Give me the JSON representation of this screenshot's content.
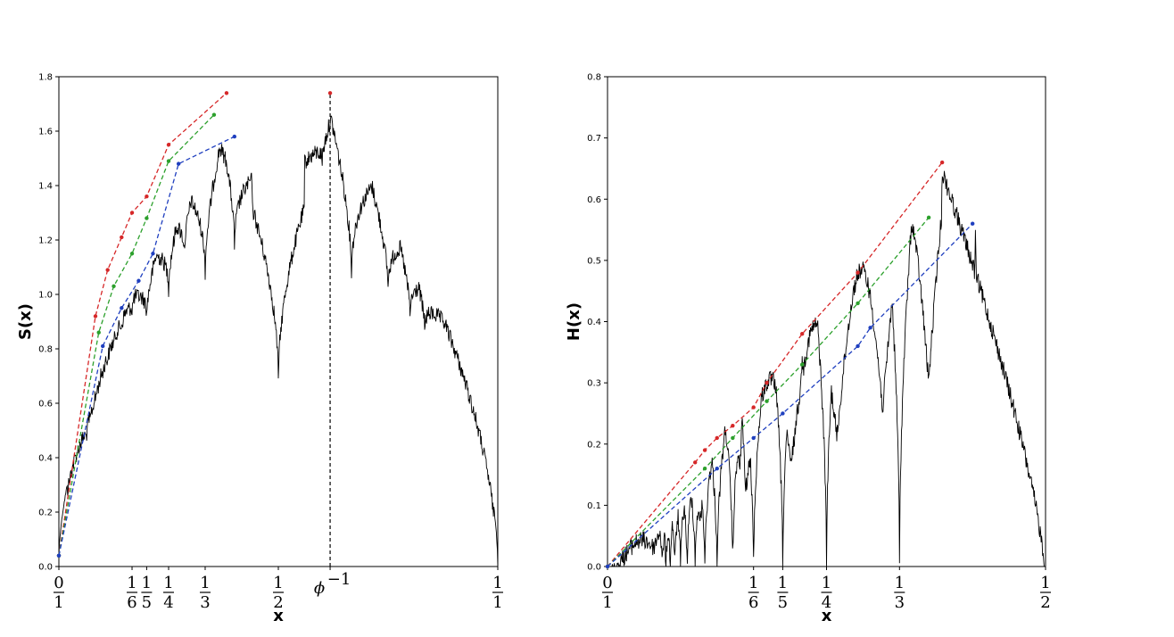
{
  "chart_data": [
    {
      "type": "line",
      "xlabel": "x",
      "ylabel": "S(x)",
      "xlim": [
        0,
        1
      ],
      "ylim": [
        0,
        1.8
      ],
      "yticks": [
        0.0,
        0.2,
        0.4,
        0.6,
        0.8,
        1.0,
        1.2,
        1.4,
        1.6,
        1.8
      ],
      "ytick_labels": [
        "0.0",
        "0.2",
        "0.4",
        "0.6",
        "0.8",
        "1.0",
        "1.2",
        "1.4",
        "1.6",
        "1.8"
      ],
      "xticks": [
        {
          "x": 0,
          "num": "0",
          "den": "1"
        },
        {
          "x": 0.1667,
          "num": "1",
          "den": "6"
        },
        {
          "x": 0.2,
          "num": "1",
          "den": "5"
        },
        {
          "x": 0.25,
          "num": "1",
          "den": "4"
        },
        {
          "x": 0.3333,
          "num": "1",
          "den": "3"
        },
        {
          "x": 0.5,
          "num": "1",
          "den": "2"
        },
        {
          "x": 0.618,
          "label": "ϕ",
          "sup": "−1"
        },
        {
          "x": 1,
          "num": "1",
          "den": "1"
        }
      ],
      "vline": {
        "x": 0.618,
        "color": "#000000",
        "style": "dashed"
      },
      "curve": {
        "name": "",
        "color": "#000000",
        "anchors": [
          {
            "x": 0.0,
            "y": 0.04
          },
          {
            "x": 0.1667,
            "y": 1.18
          },
          {
            "x": 0.2,
            "y": 1.3
          },
          {
            "x": 0.25,
            "y": 1.53
          },
          {
            "x": 0.3333,
            "y": 1.66
          },
          {
            "x": 0.382,
            "y": 1.74
          },
          {
            "x": 0.5,
            "y": 0.7
          },
          {
            "x": 0.618,
            "y": 1.74
          },
          {
            "x": 1.0,
            "y": 0.0
          }
        ],
        "dips": [
          {
            "x": 0.0625,
            "y": 0.5
          },
          {
            "x": 0.0714,
            "y": 0.56
          },
          {
            "x": 0.0769,
            "y": 0.6
          },
          {
            "x": 0.0833,
            "y": 0.64
          },
          {
            "x": 0.0909,
            "y": 0.69
          },
          {
            "x": 0.1,
            "y": 0.74
          },
          {
            "x": 0.1111,
            "y": 0.79
          },
          {
            "x": 0.125,
            "y": 0.85
          },
          {
            "x": 0.1429,
            "y": 0.91
          },
          {
            "x": 0.1667,
            "y": 0.97
          },
          {
            "x": 0.2,
            "y": 0.95
          },
          {
            "x": 0.25,
            "y": 1.05
          },
          {
            "x": 0.2857,
            "y": 1.18
          },
          {
            "x": 0.3333,
            "y": 1.1
          },
          {
            "x": 0.4,
            "y": 1.2
          },
          {
            "x": 0.5,
            "y": 0.7
          },
          {
            "x": 0.6,
            "y": 1.52
          },
          {
            "x": 0.6667,
            "y": 1.1
          },
          {
            "x": 0.75,
            "y": 1.05
          },
          {
            "x": 0.8,
            "y": 0.95
          },
          {
            "x": 0.8333,
            "y": 0.9
          }
        ]
      },
      "series": [
        {
          "color": "#d62728",
          "x": [
            0.0,
            0.0833,
            0.1111,
            0.1429,
            0.1667,
            0.2,
            0.25,
            0.382
          ],
          "y": [
            0.04,
            0.92,
            1.09,
            1.21,
            1.3,
            1.36,
            1.55,
            1.74
          ]
        },
        {
          "color": "#2ca02c",
          "x": [
            0.0,
            0.0909,
            0.125,
            0.1667,
            0.2,
            0.25,
            0.3535
          ],
          "y": [
            0.04,
            0.86,
            1.03,
            1.15,
            1.28,
            1.49,
            1.66
          ]
        },
        {
          "color": "#1f3fbf",
          "x": [
            0.0,
            0.1,
            0.1429,
            0.1818,
            0.2143,
            0.2727,
            0.4
          ],
          "y": [
            0.04,
            0.81,
            0.95,
            1.05,
            1.15,
            1.48,
            1.58
          ]
        }
      ],
      "peak_markers": [
        {
          "x": 0.618,
          "y": 1.74,
          "color": "#d62728"
        }
      ]
    },
    {
      "type": "line",
      "xlabel": "x",
      "ylabel": "H(x)",
      "xlim": [
        0,
        0.5
      ],
      "ylim": [
        0,
        0.8
      ],
      "yticks": [
        0.0,
        0.1,
        0.2,
        0.3,
        0.4,
        0.5,
        0.6,
        0.7,
        0.8
      ],
      "ytick_labels": [
        "0.0",
        "0.1",
        "0.2",
        "0.3",
        "0.4",
        "0.5",
        "0.6",
        "0.7",
        "0.8"
      ],
      "xticks": [
        {
          "x": 0,
          "num": "0",
          "den": "1"
        },
        {
          "x": 0.1667,
          "num": "1",
          "den": "6"
        },
        {
          "x": 0.2,
          "num": "1",
          "den": "5"
        },
        {
          "x": 0.25,
          "num": "1",
          "den": "4"
        },
        {
          "x": 0.3333,
          "num": "1",
          "den": "3"
        },
        {
          "x": 0.5,
          "num": "1",
          "den": "2"
        }
      ],
      "curve": {
        "name": "",
        "color": "#000000",
        "anchors": [
          {
            "x": 0.0,
            "y": 0.0
          },
          {
            "x": 0.5,
            "y": 0.0
          }
        ],
        "zeros": [
          0.0,
          0.0625,
          0.0667,
          0.0714,
          0.0769,
          0.0833,
          0.0909,
          0.1,
          0.1111,
          0.125,
          0.1429,
          0.1667,
          0.2,
          0.25,
          0.3333,
          0.5
        ],
        "peaks": [
          {
            "x": 0.1333,
            "y": 0.23
          },
          {
            "x": 0.1538,
            "y": 0.26
          },
          {
            "x": 0.1818,
            "y": 0.3
          },
          {
            "x": 0.2222,
            "y": 0.37
          },
          {
            "x": 0.2857,
            "y": 0.47
          },
          {
            "x": 0.3043,
            "y": 0.4
          },
          {
            "x": 0.382,
            "y": 0.66
          },
          {
            "x": 0.42,
            "y": 0.55
          }
        ]
      },
      "series": [
        {
          "color": "#d62728",
          "x": [
            0.0,
            0.1,
            0.1111,
            0.125,
            0.1429,
            0.1667,
            0.1818,
            0.2222,
            0.2857,
            0.382
          ],
          "y": [
            0.0,
            0.17,
            0.19,
            0.21,
            0.23,
            0.26,
            0.3,
            0.38,
            0.48,
            0.66
          ]
        },
        {
          "color": "#2ca02c",
          "x": [
            0.0,
            0.1111,
            0.1429,
            0.1818,
            0.2222,
            0.2857,
            0.3667
          ],
          "y": [
            0.0,
            0.16,
            0.21,
            0.27,
            0.33,
            0.43,
            0.57
          ]
        },
        {
          "color": "#1f3fbf",
          "x": [
            0.0,
            0.125,
            0.1667,
            0.2,
            0.2857,
            0.3,
            0.4167
          ],
          "y": [
            0.0,
            0.16,
            0.21,
            0.25,
            0.36,
            0.39,
            0.56
          ]
        }
      ]
    }
  ]
}
